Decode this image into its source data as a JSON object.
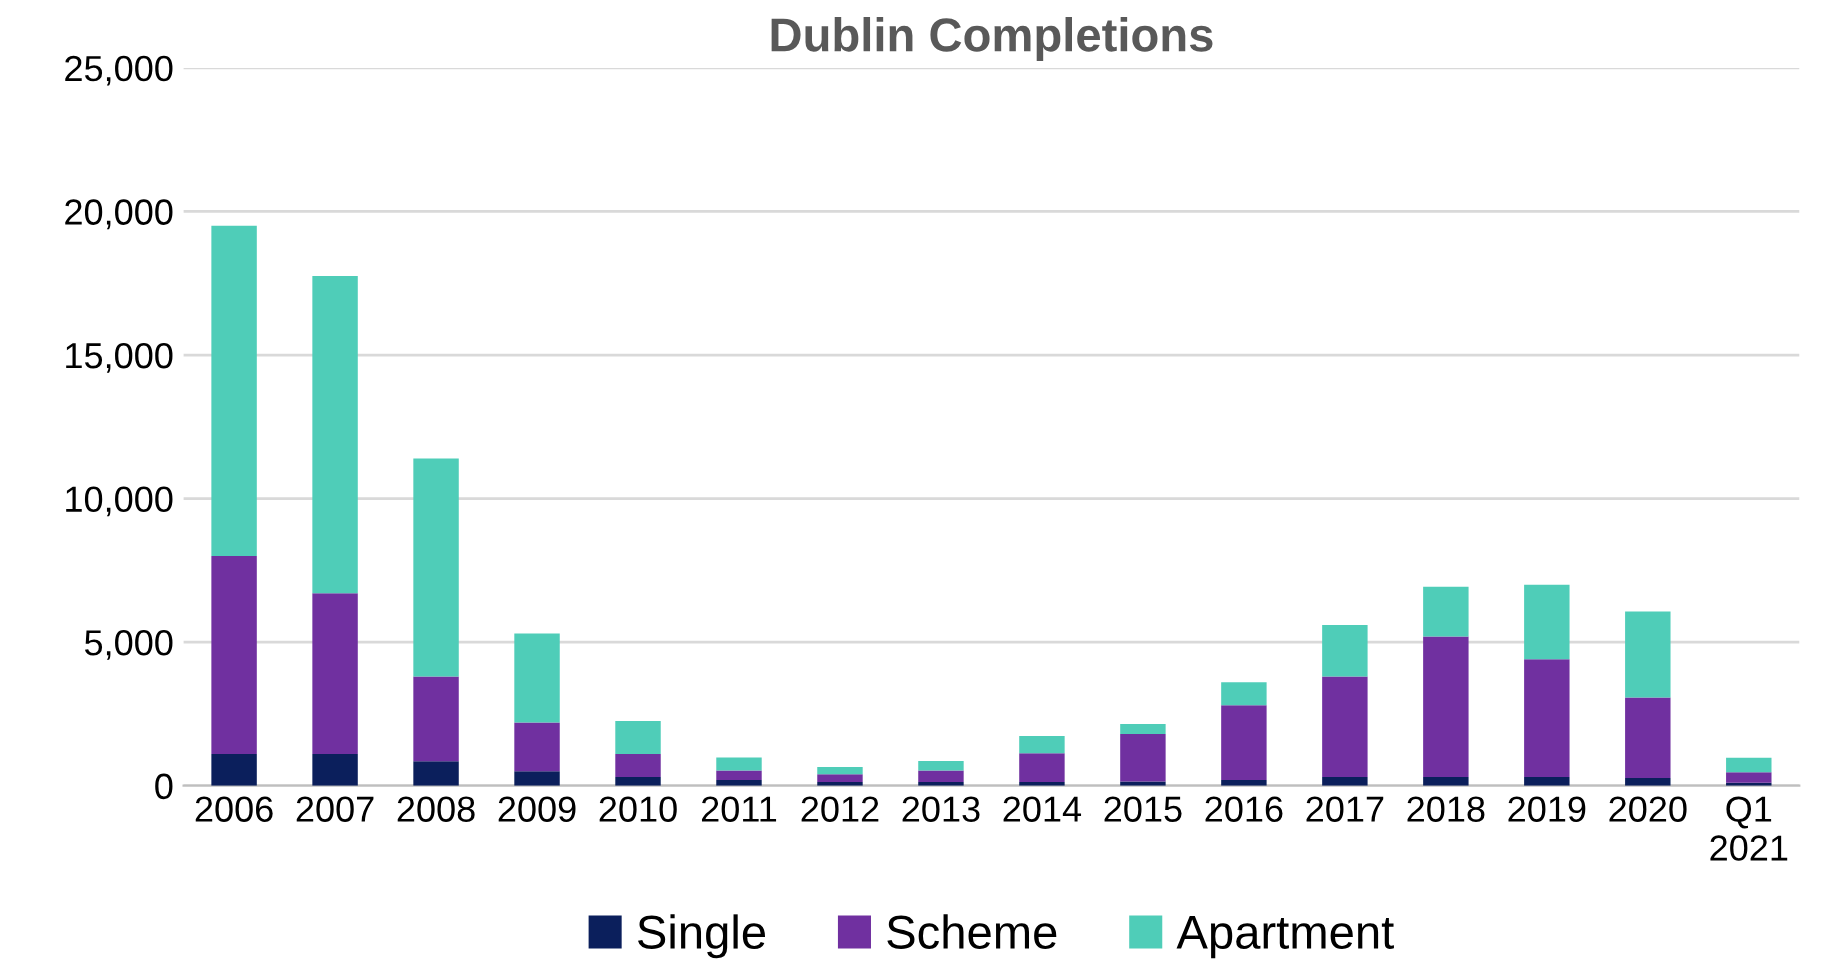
{
  "chart_data": {
    "type": "bar",
    "title": "Dublin Completions",
    "stacked": true,
    "categories": [
      "2006",
      "2007",
      "2008",
      "2009",
      "2010",
      "2011",
      "2012",
      "2013",
      "2014",
      "2015",
      "2016",
      "2017",
      "2018",
      "2019",
      "2020",
      "Q1 2021"
    ],
    "series": [
      {
        "name": "Single",
        "color": "#0b1f5c",
        "values": [
          1100,
          1100,
          850,
          500,
          300,
          200,
          130,
          130,
          130,
          150,
          200,
          300,
          300,
          300,
          270,
          100
        ]
      },
      {
        "name": "Scheme",
        "color": "#7030a0",
        "values": [
          6900,
          5600,
          2950,
          1700,
          800,
          330,
          270,
          400,
          1000,
          1650,
          2600,
          3500,
          4900,
          4100,
          2800,
          370
        ]
      },
      {
        "name": "Apartment",
        "color": "#4fcdb8",
        "values": [
          11500,
          11050,
          7600,
          3100,
          1150,
          450,
          250,
          330,
          600,
          350,
          800,
          1800,
          1730,
          2600,
          3000,
          500
        ]
      }
    ],
    "ylim": [
      0,
      25000
    ],
    "yticks": [
      {
        "value": 0,
        "label": "0"
      },
      {
        "value": 5000,
        "label": "5,000"
      },
      {
        "value": 10000,
        "label": "10,000"
      },
      {
        "value": 15000,
        "label": "15,000"
      },
      {
        "value": 20000,
        "label": "20,000"
      },
      {
        "value": 25000,
        "label": "25,000"
      }
    ],
    "grid": "y",
    "legend": "bottom"
  }
}
